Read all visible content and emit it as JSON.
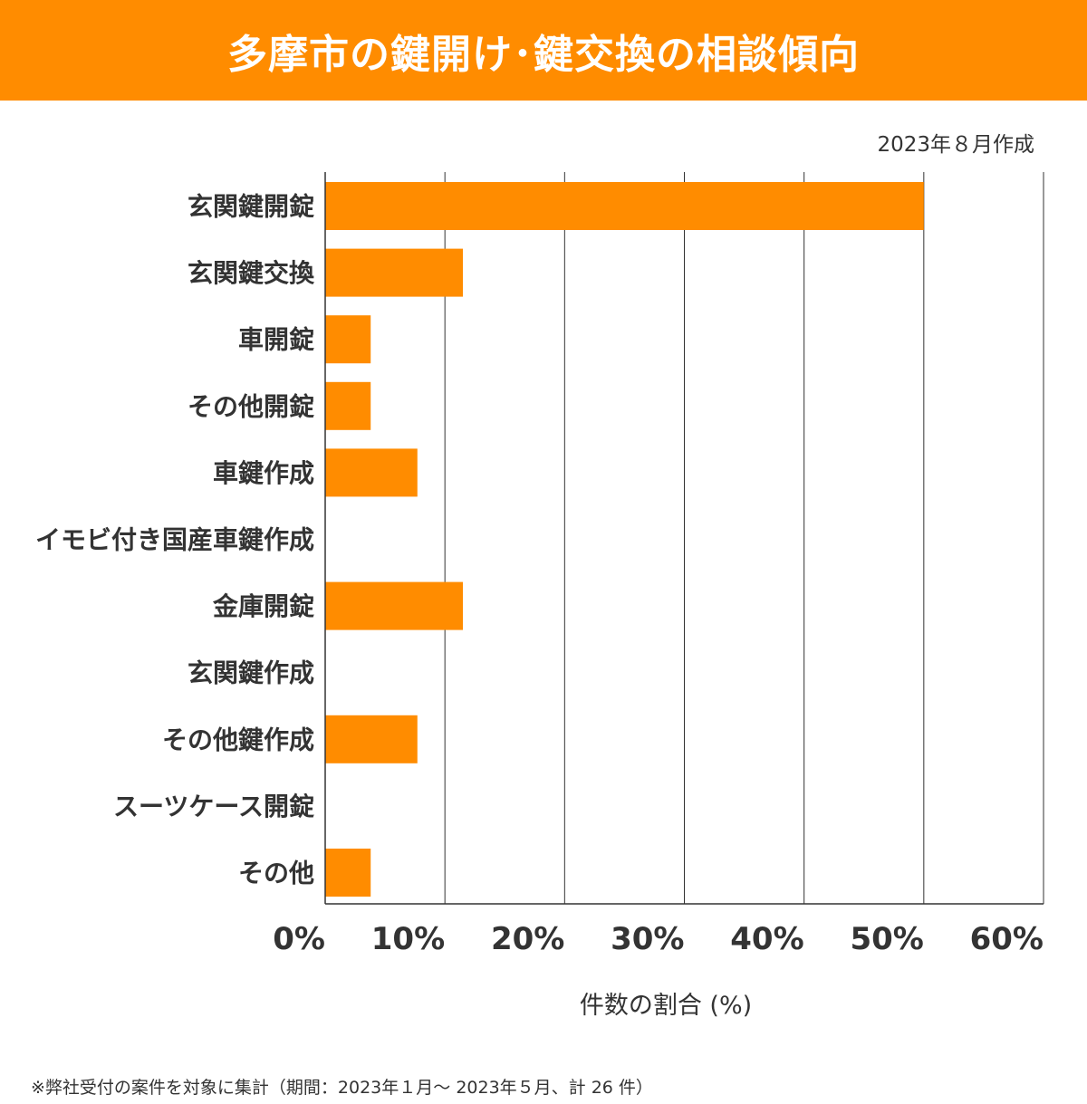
{
  "chart_data": {
    "type": "bar",
    "orientation": "horizontal",
    "title": "多摩市の鍵開け･鍵交換の相談傾向",
    "subtitle": "2023年８月作成",
    "xlabel": "件数の割合 (%)",
    "ylabel": "",
    "xlim": [
      0,
      60
    ],
    "x_ticks": [
      0,
      10,
      20,
      30,
      40,
      50,
      60
    ],
    "x_tick_labels": [
      "0%",
      "10%",
      "20%",
      "30%",
      "40%",
      "50%",
      "60%"
    ],
    "grid": true,
    "bar_color": "#ff8c00",
    "categories": [
      "玄関鍵開錠",
      "玄関鍵交換",
      "車開錠",
      "その他開錠",
      "車鍵作成",
      "イモビ付き国産車鍵作成",
      "金庫開錠",
      "玄関鍵作成",
      "その他鍵作成",
      "スーツケース開錠",
      "その他"
    ],
    "values": [
      50.0,
      11.5,
      3.8,
      3.8,
      7.7,
      0,
      11.5,
      0,
      7.7,
      0,
      3.8
    ],
    "footnote": "※弊社受付の案件を対象に集計（期間：2023年１月～ 2023年５月、計 26 件）"
  }
}
